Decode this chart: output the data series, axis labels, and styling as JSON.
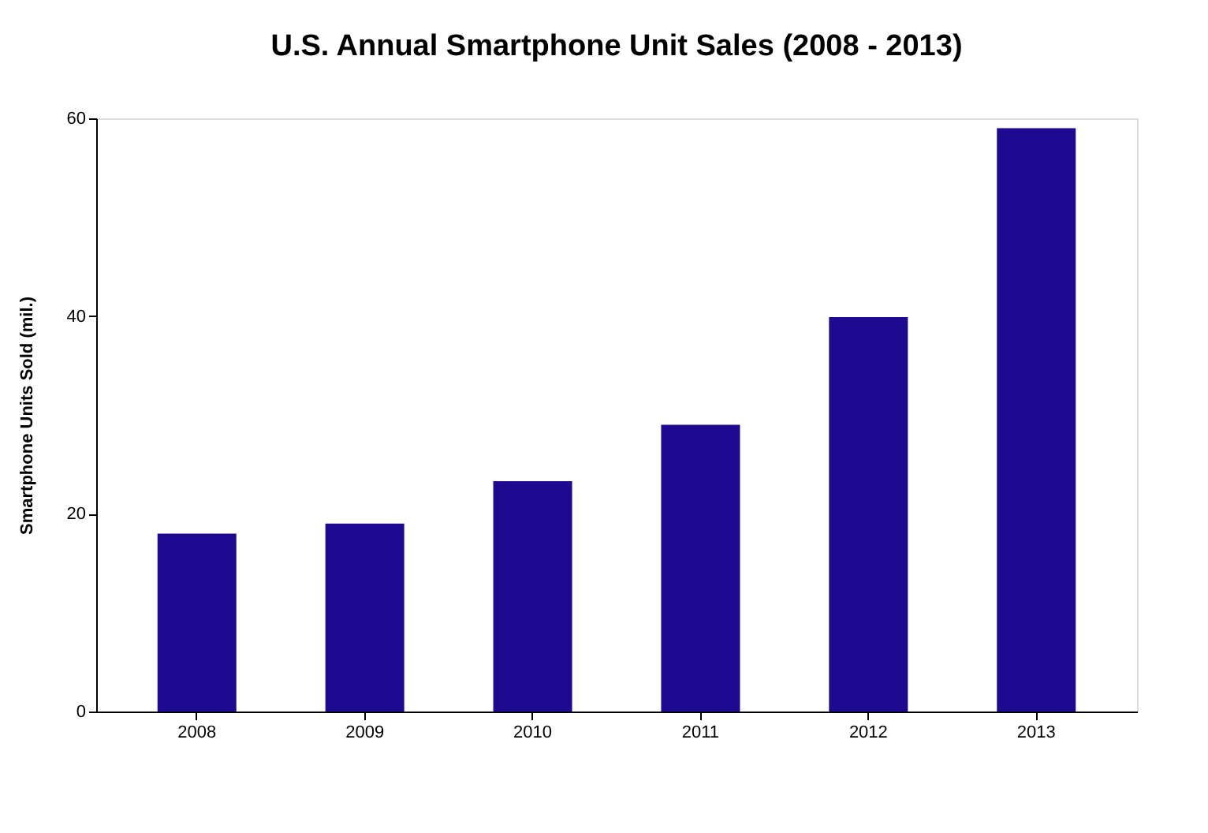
{
  "chart_data": {
    "type": "bar",
    "title": "U.S. Annual Smartphone Unit Sales (2008 - 2013)",
    "ylabel": "Smartphone Units Sold (mil.)",
    "categories": [
      "2008",
      "2009",
      "2010",
      "2011",
      "2012",
      "2013"
    ],
    "values": [
      18,
      19,
      23.3,
      29,
      39.9,
      59
    ],
    "color": "#1e0a90",
    "ylim": [
      0,
      60
    ],
    "yticks": [
      0,
      20,
      40,
      60
    ],
    "grid": false
  }
}
